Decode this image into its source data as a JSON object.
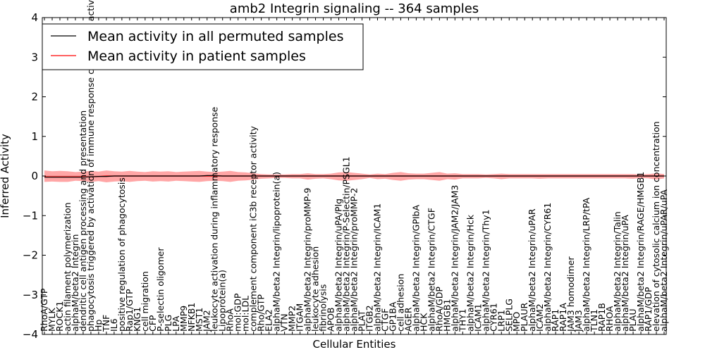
{
  "chart_data": {
    "type": "line",
    "title": "amb2 Integrin signaling -- 364 samples",
    "xlabel": "Cellular Entities",
    "ylabel": "Inferred Activity",
    "ylim": [
      -4,
      4
    ],
    "yticks": [
      -4,
      -3,
      -2,
      -1,
      0,
      1,
      2,
      3,
      4
    ],
    "ytick_labels": [
      "−4",
      "−3",
      "−2",
      "−1",
      "0",
      "1",
      "2",
      "3",
      "4"
    ],
    "grid": false,
    "legend_position": "upper-left",
    "categories": [
      "RhoA/GTP",
      "MYLK",
      "ROCK1",
      "actin filament polymerization",
      "alphaM/beta2 Integrin",
      "dendritic cell antigen processing and presentation",
      "phagocytosis triggered by activation of immune response cell surface activating receptor",
      "Hp",
      "TNF",
      "IL6",
      "positive regulation of phagocytosis",
      "Rap1/GTP",
      "KNG1",
      "cell migration",
      "CFP",
      "P-selectin oligomer",
      "PLG",
      "LPA",
      "MMP9",
      "NFKB1",
      "MST1",
      "JAM2",
      "leukocyte activation during inflammatory response",
      "Lipoprotein(a)",
      "RhoA",
      "mol:GDP",
      "mol:LDL",
      "complement component iC3b receptor activity",
      "Rho/GTP",
      "ELA2",
      "alphaM/beta2 Integrin/lipoprotein(a)",
      "VTN",
      "MMP2",
      "ITGAM",
      "alphaM/beta2 Integrin/proMMP-9",
      "leukocyte adhesion",
      "fibrinolysis",
      "APOB",
      "alphaM/beta2 Integrin/uPA/Plg",
      "alphaM/beta2 Integrin/P-Selectin/PSGL1",
      "alphaM/beta2 Integrin/proMMP-2",
      "PLAT",
      "ITGB2",
      "alphaM/beta2 Integrin/ICAM1",
      "CTGF",
      "GP1BA",
      "cell adhesion",
      "AGER",
      "alphaM/beta2 Integrin/GPIbA",
      "HCK",
      "alphaM/beta2 Integrin/CTGF",
      "RhoA/GDP",
      "HMGB1",
      "alphaM/beta2 Integrin/JAM2/JAM3",
      "THY1",
      "alphaM/beta2 Integrin/Hck",
      "ICAM1",
      "alphaM/beta2 Integrin/Thy1",
      "CYR61",
      "LRP1",
      "SELPLG",
      "MPO",
      "PLAUR",
      "alphaM/beta2 Integrin/uPAR",
      "ICAM2",
      "alphaM/beta2 Integrin/CYR61",
      "RAP1",
      "RAP1A",
      "JAM3 homodimer",
      "JAM3",
      "alphaM/beta2 Integrin/LRP/tPA",
      "TLN1",
      "RAP1B",
      "RHOA",
      "alphaM/beta2 Integrin/Talin",
      "alphaM/beta2 Integrin/uPA",
      "PLAU",
      "alphaM/beta2 Integrin/RAGE/HMGB1",
      "RAP1/GDP",
      "elevation of cytosolic calcium ion concentration",
      "alphaM/beta2 Integrin/uPAR/uPA"
    ],
    "series": [
      {
        "name": "Mean activity in all permuted samples",
        "color": "#000000",
        "values": [
          -0.03,
          -0.03,
          -0.03,
          -0.03,
          -0.03,
          -0.03,
          -0.02,
          -0.01,
          -0.01,
          0.0,
          0.0,
          0.0,
          0.0,
          0.0,
          0.0,
          0.0,
          0.0,
          0.0,
          0.0,
          0.0,
          0.0,
          0.01,
          0.01,
          0.0,
          0.0,
          0.0,
          0.0,
          0.0,
          0.0,
          0.0,
          0.0,
          0.0,
          0.0,
          0.0,
          0.0,
          0.0,
          0.0,
          0.0,
          0.0,
          0.0,
          0.0,
          0.0,
          0.0,
          0.0,
          0.0,
          0.0,
          0.0,
          0.0,
          0.0,
          0.0,
          0.0,
          0.0,
          0.0,
          0.0,
          0.0,
          0.0,
          0.0,
          0.0,
          0.0,
          0.0,
          0.0,
          0.0,
          0.0,
          0.0,
          0.0,
          0.0,
          0.0,
          0.0,
          0.0,
          0.0,
          0.0,
          0.0,
          0.0,
          0.0,
          0.0,
          0.0,
          0.0,
          0.0,
          0.0,
          0.0,
          0.0
        ],
        "band_color": "#bbbbbb",
        "band_lower": [
          -0.03,
          -0.04,
          -0.04,
          -0.04,
          -0.04,
          -0.04,
          -0.03,
          -0.03,
          -0.03,
          -0.02,
          -0.02,
          -0.02,
          -0.02,
          -0.02,
          -0.02,
          -0.02,
          -0.02,
          -0.02,
          -0.02,
          -0.02,
          -0.02,
          -0.02,
          -0.02,
          -0.02,
          -0.02,
          -0.02,
          -0.02,
          -0.02,
          -0.02,
          -0.02,
          -0.02,
          -0.02,
          -0.02,
          -0.02,
          -0.02,
          -0.02,
          -0.02,
          -0.02,
          -0.02,
          -0.02,
          -0.02,
          -0.02,
          -0.02,
          -0.02,
          -0.02,
          -0.02,
          -0.02,
          -0.02,
          -0.02,
          -0.02,
          -0.02,
          -0.02,
          -0.02,
          -0.02,
          -0.02,
          -0.02,
          -0.02,
          -0.02,
          -0.02,
          -0.02,
          -0.02,
          -0.02,
          -0.02,
          -0.02,
          -0.02,
          -0.02,
          -0.02,
          -0.02,
          -0.02,
          -0.02,
          -0.02,
          -0.02,
          -0.02,
          -0.02,
          -0.02,
          -0.02,
          -0.02,
          -0.02,
          -0.02,
          -0.02,
          -0.02
        ],
        "band_upper": [
          0.01,
          0.01,
          0.01,
          0.01,
          0.01,
          0.01,
          0.01,
          0.01,
          0.02,
          0.02,
          0.02,
          0.02,
          0.02,
          0.02,
          0.02,
          0.02,
          0.02,
          0.02,
          0.02,
          0.02,
          0.02,
          0.02,
          0.02,
          0.02,
          0.02,
          0.02,
          0.02,
          0.02,
          0.02,
          0.02,
          0.02,
          0.02,
          0.02,
          0.02,
          0.02,
          0.02,
          0.02,
          0.02,
          0.02,
          0.02,
          0.02,
          0.02,
          0.02,
          0.02,
          0.02,
          0.02,
          0.02,
          0.02,
          0.02,
          0.02,
          0.02,
          0.02,
          0.02,
          0.02,
          0.02,
          0.02,
          0.02,
          0.02,
          0.02,
          0.02,
          0.02,
          0.02,
          0.02,
          0.02,
          0.02,
          0.02,
          0.02,
          0.02,
          0.02,
          0.02,
          0.02,
          0.02,
          0.02,
          0.02,
          0.02,
          0.02,
          0.02,
          0.02,
          0.02,
          0.02,
          0.02
        ]
      },
      {
        "name": "Mean activity in patient samples",
        "color": "#ff0000",
        "values": [
          -0.02,
          -0.02,
          -0.02,
          -0.02,
          -0.02,
          -0.02,
          -0.02,
          -0.01,
          0.0,
          0.0,
          0.0,
          0.0,
          0.0,
          0.0,
          0.0,
          0.0,
          0.0,
          0.0,
          0.0,
          0.0,
          0.0,
          0.0,
          0.0,
          0.0,
          0.0,
          0.0,
          0.0,
          0.0,
          0.0,
          0.0,
          0.0,
          0.0,
          0.0,
          0.0,
          0.0,
          0.0,
          0.0,
          0.0,
          0.0,
          0.0,
          0.0,
          0.0,
          0.0,
          0.0,
          0.0,
          0.0,
          0.0,
          0.0,
          0.0,
          0.0,
          0.0,
          0.0,
          0.0,
          0.0,
          0.0,
          0.0,
          0.0,
          0.0,
          0.0,
          0.0,
          0.0,
          0.0,
          0.0,
          0.0,
          0.0,
          0.0,
          0.0,
          0.0,
          0.0,
          0.0,
          0.0,
          0.0,
          0.0,
          0.0,
          0.0,
          0.0,
          0.0,
          0.0,
          0.0,
          0.0,
          0.0
        ],
        "band_color": "#ff0000",
        "band_lower": [
          -0.15,
          -0.14,
          -0.15,
          -0.15,
          -0.12,
          -0.13,
          -0.15,
          -0.13,
          -0.16,
          -0.14,
          -0.13,
          -0.15,
          -0.13,
          -0.12,
          -0.14,
          -0.13,
          -0.14,
          -0.12,
          -0.13,
          -0.14,
          -0.15,
          -0.13,
          -0.12,
          -0.13,
          -0.15,
          -0.12,
          -0.11,
          -0.09,
          -0.07,
          -0.06,
          -0.05,
          -0.05,
          -0.06,
          -0.06,
          -0.09,
          -0.07,
          -0.06,
          -0.08,
          -0.11,
          -0.12,
          -0.1,
          -0.08,
          -0.05,
          -0.08,
          -0.07,
          -0.1,
          -0.12,
          -0.09,
          -0.08,
          -0.08,
          -0.1,
          -0.12,
          -0.08,
          -0.09,
          -0.06,
          -0.06,
          -0.06,
          -0.05,
          -0.06,
          -0.08,
          -0.06,
          -0.06,
          -0.06,
          -0.06,
          -0.07,
          -0.06,
          -0.06,
          -0.06,
          -0.06,
          -0.06,
          -0.06,
          -0.06,
          -0.06,
          -0.06,
          -0.06,
          -0.06,
          -0.07,
          -0.05,
          -0.06,
          -0.09,
          -0.06
        ],
        "band_upper": [
          0.14,
          0.12,
          0.13,
          0.12,
          0.1,
          0.11,
          0.13,
          0.11,
          0.14,
          0.12,
          0.11,
          0.13,
          0.11,
          0.1,
          0.12,
          0.11,
          0.12,
          0.1,
          0.11,
          0.12,
          0.13,
          0.11,
          0.1,
          0.11,
          0.13,
          0.1,
          0.09,
          0.07,
          0.05,
          0.04,
          0.04,
          0.04,
          0.05,
          0.05,
          0.07,
          0.05,
          0.05,
          0.06,
          0.09,
          0.1,
          0.08,
          0.06,
          0.04,
          0.06,
          0.05,
          0.08,
          0.1,
          0.07,
          0.06,
          0.06,
          0.08,
          0.1,
          0.06,
          0.07,
          0.05,
          0.05,
          0.05,
          0.04,
          0.05,
          0.06,
          0.05,
          0.05,
          0.05,
          0.05,
          0.05,
          0.05,
          0.05,
          0.05,
          0.05,
          0.05,
          0.05,
          0.05,
          0.05,
          0.05,
          0.05,
          0.05,
          0.05,
          0.04,
          0.05,
          0.07,
          0.05
        ]
      }
    ]
  }
}
